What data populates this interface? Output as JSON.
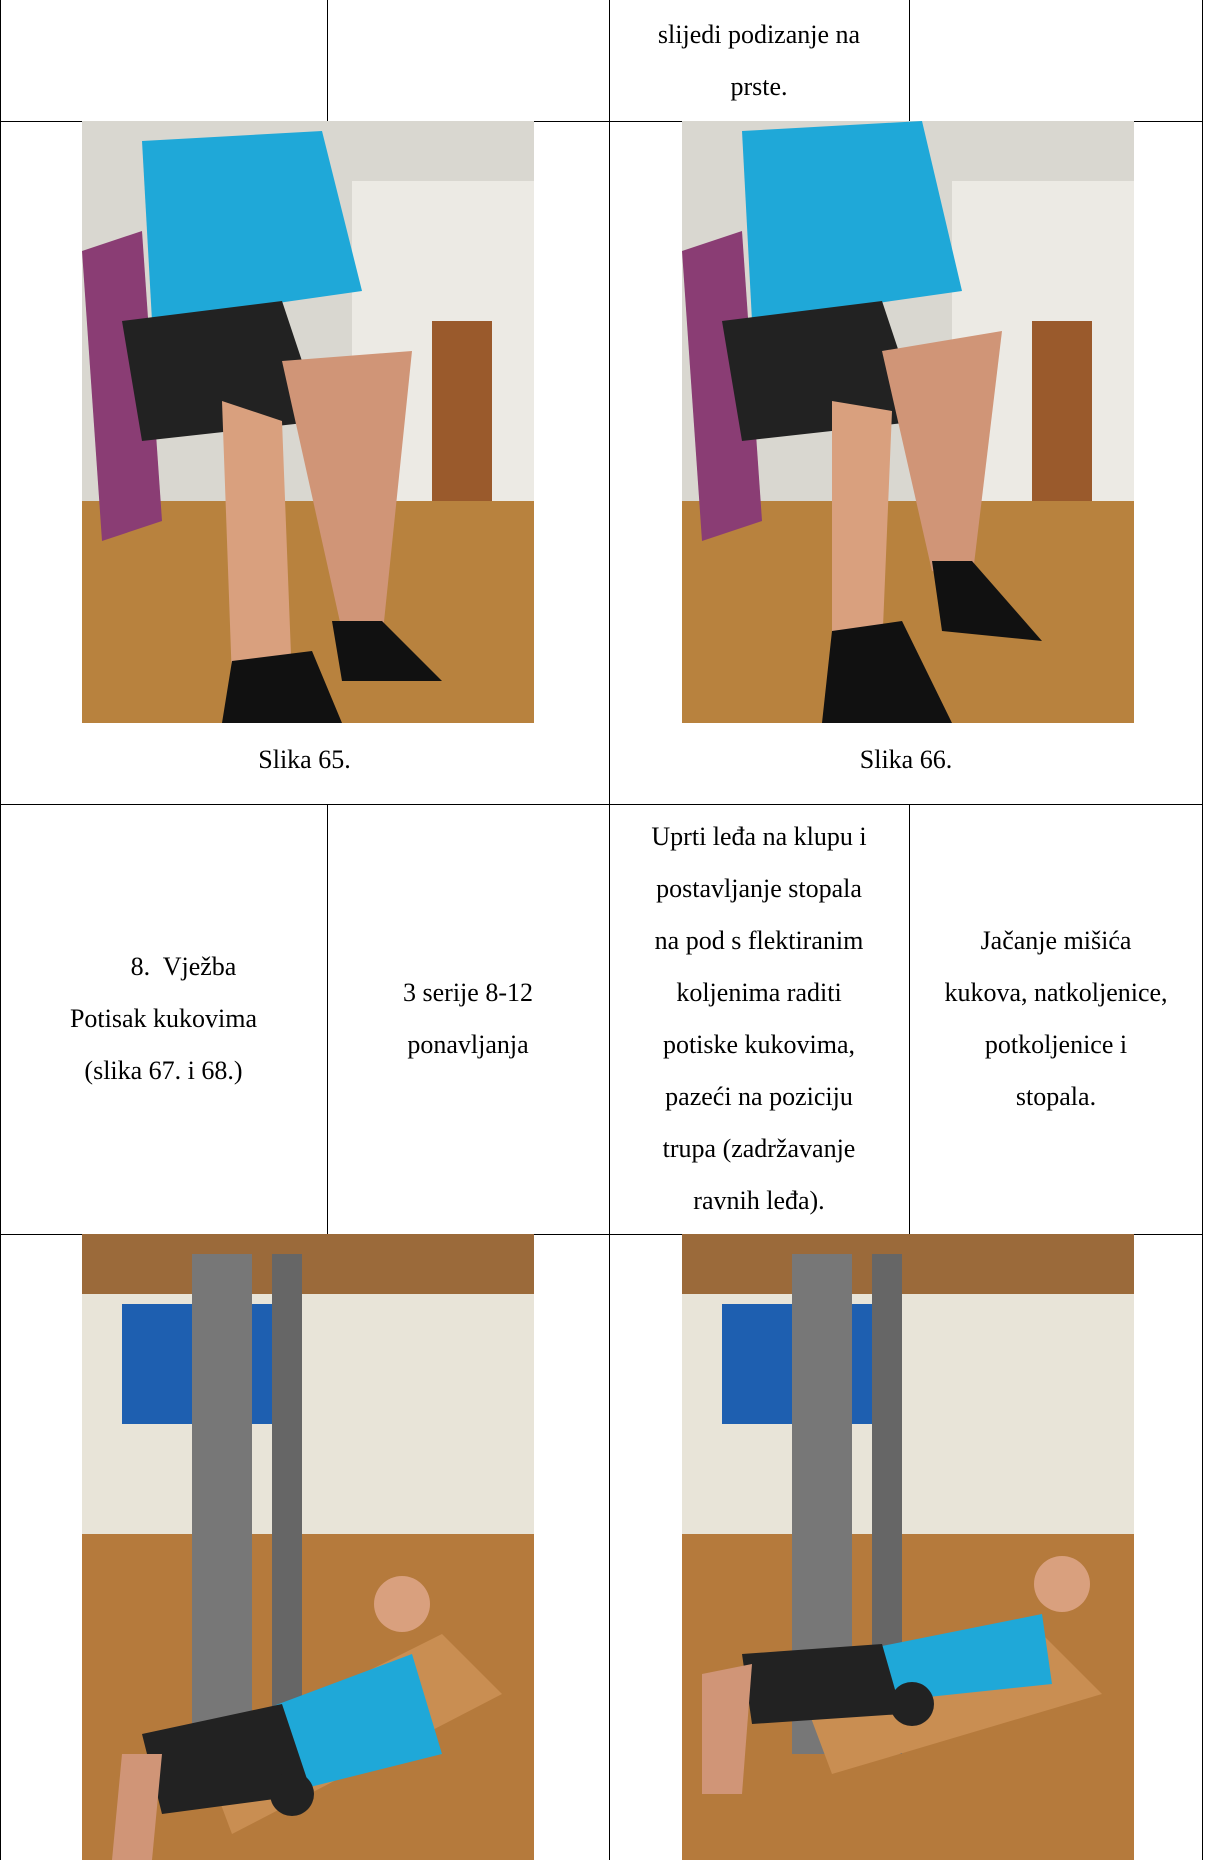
{
  "table": {
    "rows": [
      {
        "cells": [
          [],
          [],
          [
            "slijedi podizanje na",
            "prste."
          ],
          []
        ]
      },
      {
        "captions": [
          "Slika 65.",
          "Slika 66."
        ]
      },
      {
        "cells": [
          [
            "8.  Vježba",
            "Potisak kukovima",
            "(slika 67. i 68.)"
          ],
          [
            "3 serije 8-12",
            "ponavljanja"
          ],
          [
            "Uprti leđa na klupu i",
            "postavljanje stopala",
            "na pod s flektiranim",
            "koljenima raditi",
            "potiske kukovima,",
            "pazeći na poziciju",
            "trupa (zadržavanje",
            "ravnih leđa)."
          ],
          [
            "Jačanje mišića",
            "kukova, natkoljenice,",
            "potkoljenice i",
            "stopala."
          ]
        ]
      }
    ]
  }
}
